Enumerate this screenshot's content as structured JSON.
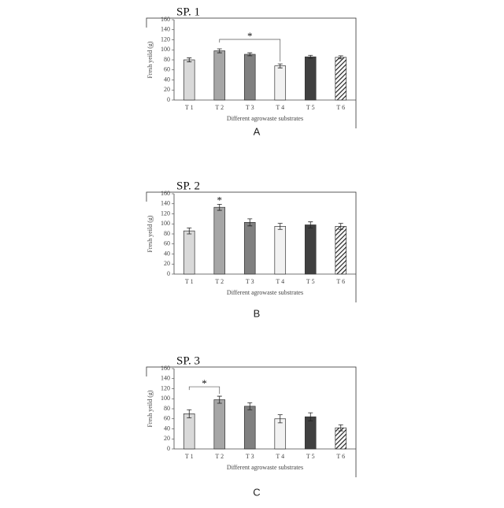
{
  "chart_data": [
    {
      "type": "bar",
      "title": "SP. 1",
      "panel": "A",
      "x_label": "Different agrowaste substrates",
      "y_label": "Fresh yeild (g)",
      "categories": [
        "T 1",
        "T 2",
        "T 3",
        "T 4",
        "T 5",
        "T 6"
      ],
      "values": [
        80,
        98,
        91,
        68,
        86,
        85
      ],
      "errors": [
        4,
        4,
        3,
        4,
        3,
        3
      ],
      "colors": [
        "#d9d9d9",
        "#a6a6a6",
        "#808080",
        "#f2f2f2",
        "#404040",
        "#ffffff"
      ],
      "patterns": [
        "solid",
        "solid",
        "solid",
        "solid",
        "solid",
        "hatch"
      ],
      "annotation": "*",
      "ylim": [
        0,
        160
      ],
      "yticks": [
        0,
        20,
        40,
        60,
        80,
        100,
        120,
        140,
        160
      ]
    },
    {
      "type": "bar",
      "title": "SP. 2",
      "panel": "B",
      "x_label": "Different agrowaste substrates",
      "y_label": "Fresh yeild (g)",
      "categories": [
        "T 1",
        "T 2",
        "T 3",
        "T 4",
        "T 5",
        "T 6"
      ],
      "values": [
        86,
        133,
        103,
        95,
        98,
        95
      ],
      "errors": [
        6,
        6,
        7,
        6,
        6,
        6
      ],
      "colors": [
        "#d9d9d9",
        "#a6a6a6",
        "#808080",
        "#f2f2f2",
        "#404040",
        "#ffffff"
      ],
      "patterns": [
        "solid",
        "solid",
        "solid",
        "solid",
        "solid",
        "hatch"
      ],
      "annotation": "*",
      "ylim": [
        0,
        160
      ],
      "yticks": [
        0,
        20,
        40,
        60,
        80,
        100,
        120,
        140,
        160
      ]
    },
    {
      "type": "bar",
      "title": "SP. 3",
      "panel": "C",
      "x_label": "Different agrowaste substrates",
      "y_label": "Fresh yeild (g)",
      "categories": [
        "T 1",
        "T 2",
        "T 3",
        "T 4",
        "T 5",
        "T 6"
      ],
      "values": [
        70,
        98,
        85,
        60,
        64,
        42
      ],
      "errors": [
        8,
        7,
        7,
        8,
        8,
        6
      ],
      "colors": [
        "#d9d9d9",
        "#a6a6a6",
        "#808080",
        "#f2f2f2",
        "#404040",
        "#ffffff"
      ],
      "patterns": [
        "solid",
        "solid",
        "solid",
        "solid",
        "solid",
        "hatch"
      ],
      "annotation": "*",
      "ylim": [
        0,
        160
      ],
      "yticks": [
        0,
        20,
        40,
        60,
        80,
        100,
        120,
        140,
        160
      ]
    }
  ]
}
